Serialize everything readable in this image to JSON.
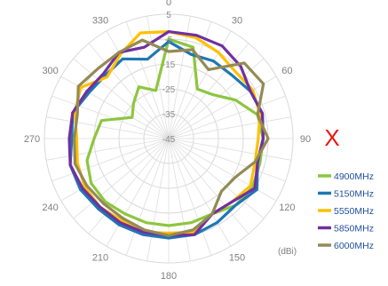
{
  "chart_data": {
    "type": "polar-line",
    "unit_label": "(dBi)",
    "axis_marker": "X",
    "radial_range": [
      -45,
      5
    ],
    "radial_ticks": [
      5,
      -5,
      -15,
      -25,
      -35,
      -45
    ],
    "angle_labels": [
      "0",
      "30",
      "60",
      "90",
      "120",
      "150",
      "180",
      "210",
      "240",
      "270",
      "300",
      "330"
    ],
    "angles": [
      0,
      15,
      30,
      45,
      60,
      75,
      90,
      105,
      120,
      135,
      150,
      165,
      180,
      195,
      210,
      225,
      240,
      255,
      270,
      285,
      300,
      315,
      330,
      345
    ],
    "grid": true,
    "legend_position": "right",
    "series": [
      {
        "name": "4900MHz",
        "color": "#8cc63e",
        "values": [
          -5,
          -7,
          -22,
          -20,
          -14,
          -8,
          -7,
          -7,
          -6,
          -7,
          -10,
          -10,
          -10,
          -10,
          -10,
          -9,
          -9,
          -11,
          -15,
          -17,
          -28,
          -25,
          -21,
          -25
        ]
      },
      {
        "name": "5150MHz",
        "color": "#1f77b4",
        "values": [
          -6,
          -10,
          -9,
          -9,
          -7,
          -6,
          -7,
          -8,
          -4,
          -7,
          -6,
          -5,
          -5,
          -5,
          -5,
          -5,
          -4,
          -4,
          -6,
          -5,
          -8,
          -9,
          -8,
          -12
        ]
      },
      {
        "name": "5550MHz",
        "color": "#ffc000",
        "values": [
          -2,
          -3,
          -5,
          -7,
          -6,
          -7,
          -9,
          -9,
          -7,
          -9,
          -10,
          -6,
          -7,
          -6,
          -7,
          -6,
          -6,
          -7,
          -8,
          -6,
          -4,
          -10,
          -6,
          -1
        ]
      },
      {
        "name": "5850MHz",
        "color": "#7030a0",
        "values": [
          -2,
          -2,
          -2,
          -4,
          -7,
          -6,
          -7,
          -8,
          -5,
          -9,
          -10,
          -5,
          -6,
          -6,
          -6,
          -6,
          -5,
          -4,
          -5,
          -5,
          -7,
          -8,
          -5,
          -7
        ]
      },
      {
        "name": "6000MHz",
        "color": "#948a54",
        "values": [
          -10,
          -8,
          -13,
          -2,
          -1,
          -8,
          -5,
          -9,
          -14,
          -15,
          -10,
          -7,
          -6,
          -7,
          -8,
          -8,
          -7,
          -6,
          -7,
          -7,
          -3,
          -5,
          -5,
          -4
        ]
      }
    ]
  }
}
